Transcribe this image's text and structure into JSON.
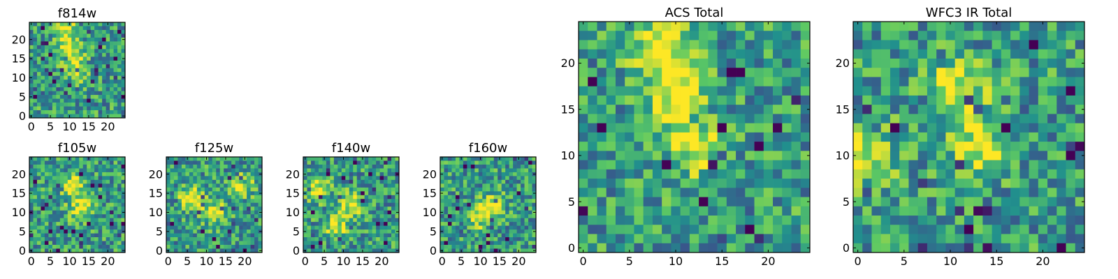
{
  "chart_data": [
    {
      "type": "heatmap",
      "id": "f814w",
      "title": "f814w",
      "grid_size": 25,
      "seed": 814,
      "hot": [
        [
          10,
          17
        ],
        [
          12,
          12
        ],
        [
          9,
          22
        ]
      ],
      "xticks": [
        0,
        5,
        10,
        15,
        20
      ],
      "yticks": [
        0,
        5,
        10,
        15,
        20
      ],
      "xlim": [
        0,
        24
      ],
      "ylim": [
        0,
        24
      ]
    },
    {
      "type": "heatmap",
      "id": "f105w",
      "title": "f105w",
      "grid_size": 25,
      "seed": 105,
      "hot": [
        [
          13,
          11
        ],
        [
          11,
          17
        ]
      ],
      "xticks": [
        0,
        5,
        10,
        15,
        20
      ],
      "yticks": [
        0,
        5,
        10,
        15,
        20
      ],
      "xlim": [
        0,
        24
      ],
      "ylim": [
        0,
        24
      ]
    },
    {
      "type": "heatmap",
      "id": "f125w",
      "title": "f125w",
      "grid_size": 25,
      "seed": 125,
      "hot": [
        [
          6,
          14
        ],
        [
          12,
          10
        ],
        [
          19,
          17
        ]
      ],
      "xticks": [
        0,
        5,
        10,
        15,
        20
      ],
      "yticks": [
        0,
        5,
        10,
        15,
        20
      ],
      "xlim": [
        0,
        24
      ],
      "ylim": [
        0,
        24
      ]
    },
    {
      "type": "heatmap",
      "id": "f140w",
      "title": "f140w",
      "grid_size": 25,
      "seed": 140,
      "hot": [
        [
          12,
          12
        ],
        [
          3,
          16
        ],
        [
          8,
          6
        ]
      ],
      "xticks": [
        0,
        5,
        10,
        15,
        20
      ],
      "yticks": [
        0,
        5,
        10,
        15,
        20
      ],
      "xlim": [
        0,
        24
      ],
      "ylim": [
        0,
        24
      ]
    },
    {
      "type": "heatmap",
      "id": "f160w",
      "title": "f160w",
      "grid_size": 25,
      "seed": 160,
      "hot": [
        [
          14,
          12
        ],
        [
          10,
          9
        ]
      ],
      "xticks": [
        0,
        5,
        10,
        15,
        20
      ],
      "yticks": [
        0,
        5,
        10,
        15,
        20
      ],
      "xlim": [
        0,
        24
      ],
      "ylim": [
        0,
        24
      ]
    },
    {
      "type": "heatmap",
      "id": "acs-total",
      "title": "ACS Total",
      "grid_size": 25,
      "seed": 999,
      "hot": [
        [
          12,
          11
        ],
        [
          10,
          17
        ],
        [
          8,
          22
        ]
      ],
      "xticks": [
        0,
        5,
        10,
        15,
        20
      ],
      "yticks": [
        0,
        5,
        10,
        15,
        20
      ],
      "xlim": [
        0,
        24
      ],
      "ylim": [
        0,
        24
      ]
    },
    {
      "type": "heatmap",
      "id": "wfc3-ir-total",
      "title": "WFC3 IR Total",
      "grid_size": 25,
      "seed": 333,
      "hot": [
        [
          13,
          11
        ],
        [
          11,
          17
        ],
        [
          1,
          10
        ]
      ],
      "xticks": [
        0,
        5,
        10,
        15,
        20
      ],
      "yticks": [
        0,
        5,
        10,
        15,
        20
      ],
      "xlim": [
        0,
        24
      ],
      "ylim": [
        0,
        24
      ]
    }
  ],
  "colormap": [
    "#440154",
    "#3b528b",
    "#21908d",
    "#5dc963",
    "#fde725"
  ]
}
